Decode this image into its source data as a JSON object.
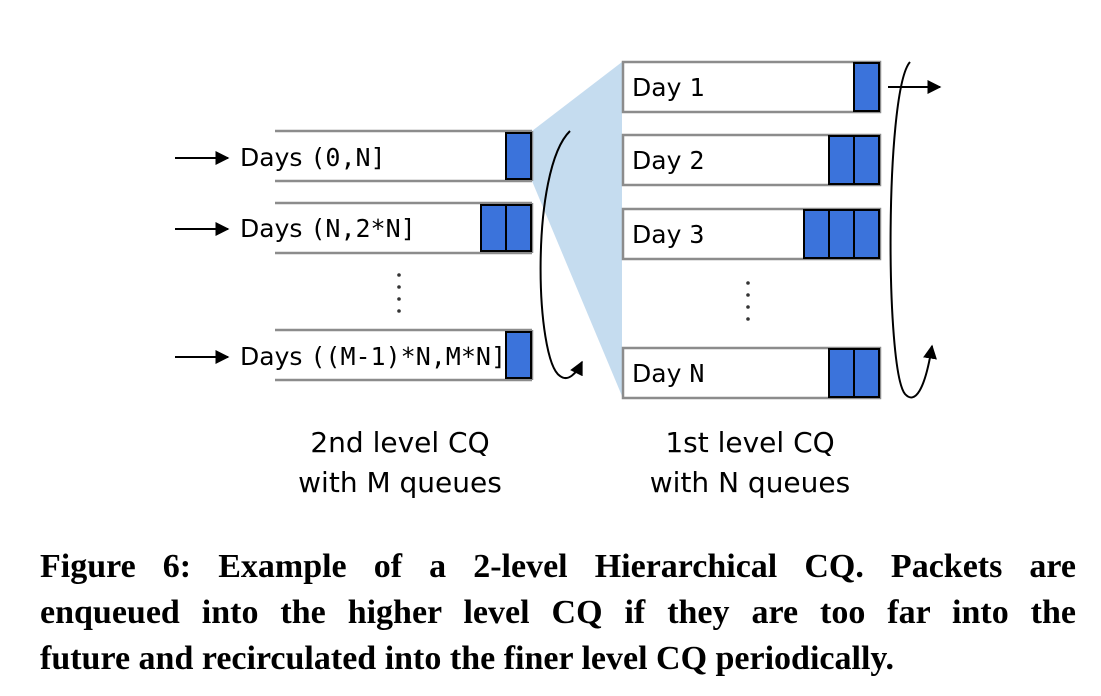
{
  "second_level": {
    "queues": [
      {
        "label": "Days ",
        "range": "(0,N]"
      },
      {
        "label": "Days ",
        "range": "(N,2*N]"
      },
      {
        "label": "Days ",
        "range": "((M-1)*N,M*N]"
      }
    ],
    "title_line1": "2nd level CQ",
    "title_line2": "with M queues"
  },
  "first_level": {
    "queues": [
      {
        "label": "Day ",
        "index": "1"
      },
      {
        "label": "Day ",
        "index": "2"
      },
      {
        "label": "Day ",
        "index": "3"
      },
      {
        "label": "Day ",
        "index": "N"
      }
    ],
    "title_line1": "1st level CQ",
    "title_line2": "with N queues"
  },
  "colors": {
    "packet": "#3b73db",
    "zoom": "#c5dcef"
  },
  "caption": {
    "line1": "Figure 6: Example of a 2-level Hierarchical CQ. Packets are",
    "line2": "enqueued into the higher level CQ if they are too far into the",
    "line3": "future and recirculated into the finer level CQ periodically."
  }
}
